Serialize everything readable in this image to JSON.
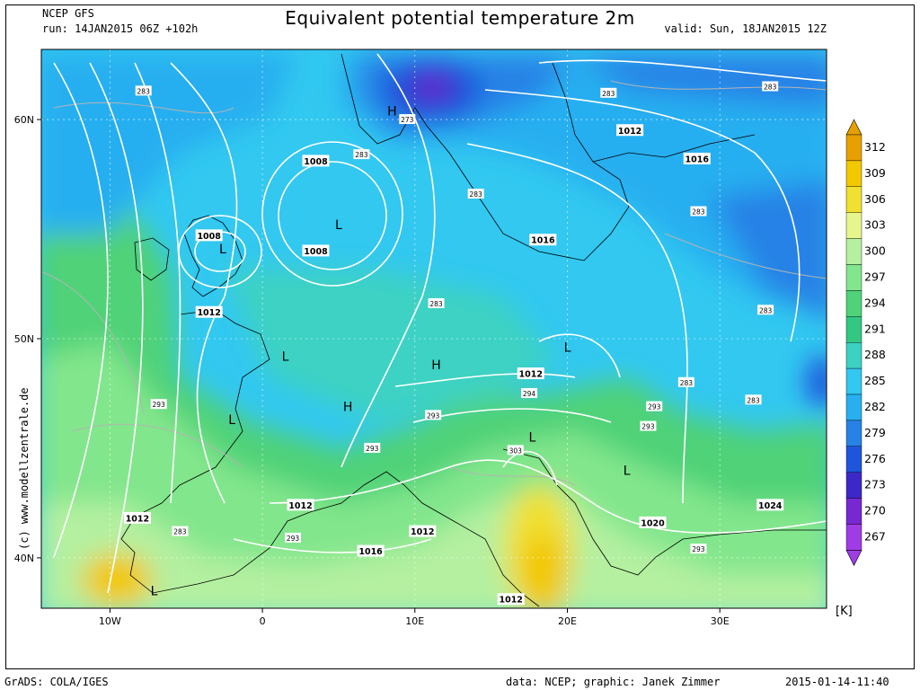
{
  "header": {
    "model": "NCEP GFS",
    "run": "run: 14JAN2015 06Z +102h",
    "title": "Equivalent potential temperature 2m",
    "valid": "valid: Sun, 18JAN2015 12Z"
  },
  "axes": {
    "lat_ticks": [
      {
        "value": 60,
        "label": "60N"
      },
      {
        "value": 50,
        "label": "50N"
      },
      {
        "value": 40,
        "label": "40N"
      }
    ],
    "lon_ticks": [
      {
        "value": -10,
        "label": "10W"
      },
      {
        "value": 0,
        "label": "0"
      },
      {
        "value": 10,
        "label": "10E"
      },
      {
        "value": 20,
        "label": "20E"
      },
      {
        "value": 30,
        "label": "30E"
      }
    ],
    "lon_range": [
      -14.5,
      37
    ],
    "lat_range": [
      37.7,
      63.2
    ]
  },
  "colorbar": {
    "unit": "[K]",
    "levels": [
      312,
      309,
      306,
      303,
      300,
      297,
      294,
      291,
      288,
      285,
      282,
      279,
      276,
      273,
      270,
      267
    ],
    "colors": [
      "#e8a000",
      "#f2c800",
      "#f0e030",
      "#e6f58c",
      "#b4f0a0",
      "#82e68c",
      "#50d278",
      "#32c882",
      "#3cd2c3",
      "#32c8f0",
      "#28aff0",
      "#2882e6",
      "#1e55dc",
      "#3c28c8",
      "#7828d2",
      "#a03ce6"
    ]
  },
  "pressure_labels": [
    {
      "text": "1008",
      "lon": 3.5,
      "lat": 58.1
    },
    {
      "text": "1008",
      "lon": -3.5,
      "lat": 54.7
    },
    {
      "text": "1008",
      "lon": 3.5,
      "lat": 54.0
    },
    {
      "text": "1012",
      "lon": -3.5,
      "lat": 51.2
    },
    {
      "text": "1012",
      "lon": 24.1,
      "lat": 59.5
    },
    {
      "text": "1016",
      "lon": 28.5,
      "lat": 58.2
    },
    {
      "text": "1016",
      "lon": 18.4,
      "lat": 54.5
    },
    {
      "text": "1012",
      "lon": 17.6,
      "lat": 48.4
    },
    {
      "text": "1012",
      "lon": -8.2,
      "lat": 41.8
    },
    {
      "text": "1012",
      "lon": 2.5,
      "lat": 42.4
    },
    {
      "text": "1012",
      "lon": 10.5,
      "lat": 41.2
    },
    {
      "text": "1016",
      "lon": 7.1,
      "lat": 40.3
    },
    {
      "text": "1012",
      "lon": 16.3,
      "lat": 38.1
    },
    {
      "text": "1020",
      "lon": 25.6,
      "lat": 41.6
    },
    {
      "text": "1024",
      "lon": 33.3,
      "lat": 42.4
    }
  ],
  "theta_labels": [
    {
      "text": "283",
      "lon": -7.8,
      "lat": 61.3
    },
    {
      "text": "273",
      "lon": 9.5,
      "lat": 60.0
    },
    {
      "text": "283",
      "lon": 6.5,
      "lat": 58.4
    },
    {
      "text": "283",
      "lon": 14.0,
      "lat": 56.6
    },
    {
      "text": "283",
      "lon": 22.7,
      "lat": 61.2
    },
    {
      "text": "283",
      "lon": 33.3,
      "lat": 61.5
    },
    {
      "text": "283",
      "lon": 28.6,
      "lat": 55.8
    },
    {
      "text": "283",
      "lon": 11.4,
      "lat": 51.6
    },
    {
      "text": "283",
      "lon": 33.0,
      "lat": 51.3
    },
    {
      "text": "283",
      "lon": 27.8,
      "lat": 48.0
    },
    {
      "text": "283",
      "lon": 32.2,
      "lat": 47.2
    },
    {
      "text": "293",
      "lon": -6.8,
      "lat": 47.0
    },
    {
      "text": "293",
      "lon": 11.2,
      "lat": 46.5
    },
    {
      "text": "294",
      "lon": 17.5,
      "lat": 47.5
    },
    {
      "text": "293",
      "lon": 25.7,
      "lat": 46.9
    },
    {
      "text": "293",
      "lon": 25.3,
      "lat": 46.0
    },
    {
      "text": "293",
      "lon": 7.2,
      "lat": 45.0
    },
    {
      "text": "303",
      "lon": 16.6,
      "lat": 44.9
    },
    {
      "text": "283",
      "lon": -5.4,
      "lat": 41.2
    },
    {
      "text": "293",
      "lon": 2.0,
      "lat": 40.9
    },
    {
      "text": "293",
      "lon": 28.6,
      "lat": 40.4
    }
  ],
  "centers": [
    {
      "kind": "H",
      "lon": 8.5,
      "lat": 60.4
    },
    {
      "kind": "L",
      "lon": 5.0,
      "lat": 55.2
    },
    {
      "kind": "L",
      "lon": -2.6,
      "lat": 54.1
    },
    {
      "kind": "L",
      "lon": 1.5,
      "lat": 49.2
    },
    {
      "kind": "H",
      "lon": 11.4,
      "lat": 48.8
    },
    {
      "kind": "L",
      "lon": 20.0,
      "lat": 49.6
    },
    {
      "kind": "H",
      "lon": 5.6,
      "lat": 46.9
    },
    {
      "kind": "L",
      "lon": -2.0,
      "lat": 46.3
    },
    {
      "kind": "L",
      "lon": 17.7,
      "lat": 45.5
    },
    {
      "kind": "L",
      "lon": 23.9,
      "lat": 44.0
    },
    {
      "kind": "L",
      "lon": -7.1,
      "lat": 38.5
    }
  ],
  "footer": {
    "left": "GrADS: COLA/IGES",
    "middle": "data: NCEP; graphic: Janek Zimmer",
    "right": "2015-01-14-11:40"
  },
  "watermark": "(c)  www.modellzentrale.de"
}
